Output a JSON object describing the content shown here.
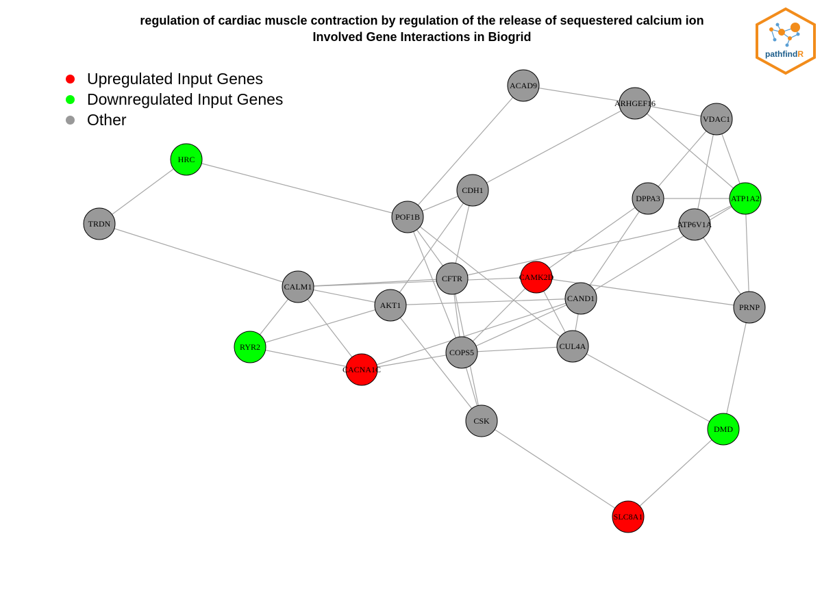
{
  "title": {
    "line1": "regulation of cardiac muscle contraction by regulation of the release of sequestered calcium ion",
    "line2": "Involved Gene Interactions in Biogrid"
  },
  "legend": [
    {
      "label": "Upregulated Input Genes",
      "color": "#ff0000"
    },
    {
      "label": "Downregulated Input Genes",
      "color": "#00ff00"
    },
    {
      "label": "Other",
      "color": "#999999"
    }
  ],
  "logo": {
    "text_main": "pathfind",
    "text_accent": "R",
    "border_color": "#f28c1b",
    "text_color": "#1b5c8a"
  },
  "colors": {
    "up": "#ff0000",
    "down": "#00ff00",
    "other": "#999999",
    "edge": "#a6a6a6"
  },
  "nodes": [
    {
      "id": "ACAD9",
      "type": "other"
    },
    {
      "id": "ARHGEF16",
      "type": "other"
    },
    {
      "id": "VDAC1",
      "type": "other"
    },
    {
      "id": "HRC",
      "type": "down"
    },
    {
      "id": "CDH1",
      "type": "other"
    },
    {
      "id": "DPPA3",
      "type": "other"
    },
    {
      "id": "ATP1A2",
      "type": "down"
    },
    {
      "id": "POF1B",
      "type": "other"
    },
    {
      "id": "ATP6V1A",
      "type": "other"
    },
    {
      "id": "TRDN",
      "type": "other"
    },
    {
      "id": "CFTR",
      "type": "other"
    },
    {
      "id": "CAMK2D",
      "type": "up"
    },
    {
      "id": "CALM1",
      "type": "other"
    },
    {
      "id": "CAND1",
      "type": "other"
    },
    {
      "id": "AKT1",
      "type": "other"
    },
    {
      "id": "PRNP",
      "type": "other"
    },
    {
      "id": "RYR2",
      "type": "down"
    },
    {
      "id": "CUL4A",
      "type": "other"
    },
    {
      "id": "COPS5",
      "type": "other"
    },
    {
      "id": "CACNA1C",
      "type": "up"
    },
    {
      "id": "CSK",
      "type": "other"
    },
    {
      "id": "DMD",
      "type": "down"
    },
    {
      "id": "SLC8A1",
      "type": "up"
    }
  ],
  "edges": [
    [
      "ACAD9",
      "ARHGEF16"
    ],
    [
      "ACAD9",
      "POF1B"
    ],
    [
      "ARHGEF16",
      "VDAC1"
    ],
    [
      "ARHGEF16",
      "ATP1A2"
    ],
    [
      "ARHGEF16",
      "CDH1"
    ],
    [
      "VDAC1",
      "DPPA3"
    ],
    [
      "VDAC1",
      "ATP6V1A"
    ],
    [
      "VDAC1",
      "ATP1A2"
    ],
    [
      "HRC",
      "TRDN"
    ],
    [
      "HRC",
      "POF1B"
    ],
    [
      "TRDN",
      "CALM1"
    ],
    [
      "CDH1",
      "POF1B"
    ],
    [
      "CDH1",
      "CFTR"
    ],
    [
      "CDH1",
      "AKT1"
    ],
    [
      "DPPA3",
      "ATP1A2"
    ],
    [
      "DPPA3",
      "CAMK2D"
    ],
    [
      "DPPA3",
      "CAND1"
    ],
    [
      "ATP1A2",
      "ATP6V1A"
    ],
    [
      "ATP1A2",
      "CAND1"
    ],
    [
      "ATP1A2",
      "PRNP"
    ],
    [
      "ATP6V1A",
      "CFTR"
    ],
    [
      "ATP6V1A",
      "PRNP"
    ],
    [
      "POF1B",
      "CFTR"
    ],
    [
      "POF1B",
      "CUL4A"
    ],
    [
      "POF1B",
      "COPS5"
    ],
    [
      "CFTR",
      "CALM1"
    ],
    [
      "CFTR",
      "COPS5"
    ],
    [
      "CAMK2D",
      "CALM1"
    ],
    [
      "CAMK2D",
      "CUL4A"
    ],
    [
      "CAMK2D",
      "COPS5"
    ],
    [
      "CAMK2D",
      "PRNP"
    ],
    [
      "CALM1",
      "AKT1"
    ],
    [
      "CALM1",
      "RYR2"
    ],
    [
      "CALM1",
      "CACNA1C"
    ],
    [
      "AKT1",
      "CAND1"
    ],
    [
      "AKT1",
      "CSK"
    ],
    [
      "AKT1",
      "RYR2"
    ],
    [
      "RYR2",
      "CACNA1C"
    ],
    [
      "CAND1",
      "CACNA1C"
    ],
    [
      "CAND1",
      "CUL4A"
    ],
    [
      "CAND1",
      "COPS5"
    ],
    [
      "CUL4A",
      "COPS5"
    ],
    [
      "CUL4A",
      "DMD"
    ],
    [
      "COPS5",
      "CACNA1C"
    ],
    [
      "COPS5",
      "CSK"
    ],
    [
      "CSK",
      "SLC8A1"
    ],
    [
      "PRNP",
      "DMD"
    ],
    [
      "DMD",
      "SLC8A1"
    ],
    [
      "CFTR",
      "CSK"
    ]
  ]
}
